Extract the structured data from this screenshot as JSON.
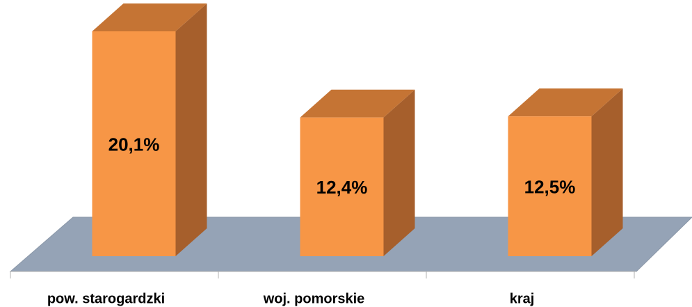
{
  "chart_data": {
    "type": "bar3d",
    "categories": [
      "pow. starogardzki",
      "woj. pomorskie",
      "kraj"
    ],
    "values": [
      20.1,
      12.4,
      12.5
    ],
    "value_labels": [
      "20,1%",
      "12,4%",
      "12,5%"
    ],
    "color": "#f79646"
  }
}
